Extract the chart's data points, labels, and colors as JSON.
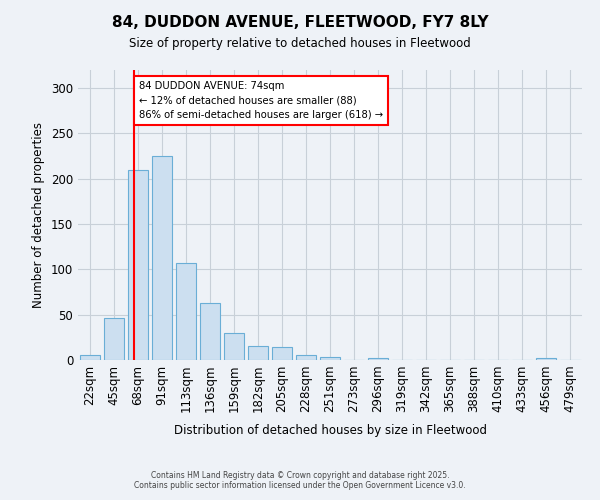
{
  "title_line1": "84, DUDDON AVENUE, FLEETWOOD, FY7 8LY",
  "title_line2": "Size of property relative to detached houses in Fleetwood",
  "xlabel": "Distribution of detached houses by size in Fleetwood",
  "ylabel": "Number of detached properties",
  "bin_labels": [
    "22sqm",
    "45sqm",
    "68sqm",
    "91sqm",
    "113sqm",
    "136sqm",
    "159sqm",
    "182sqm",
    "205sqm",
    "228sqm",
    "251sqm",
    "273sqm",
    "296sqm",
    "319sqm",
    "342sqm",
    "365sqm",
    "388sqm",
    "410sqm",
    "433sqm",
    "456sqm",
    "479sqm"
  ],
  "bar_heights": [
    5,
    46,
    210,
    225,
    107,
    63,
    30,
    15,
    14,
    6,
    3,
    0,
    2,
    0,
    0,
    0,
    0,
    0,
    0,
    2,
    0
  ],
  "bar_color": "#ccdff0",
  "bar_edge_color": "#6aaed6",
  "red_line_x": 1.82,
  "ylim_max": 320,
  "yticks": [
    0,
    50,
    100,
    150,
    200,
    250,
    300
  ],
  "annotation_text": "84 DUDDON AVENUE: 74sqm\n← 12% of detached houses are smaller (88)\n86% of semi-detached houses are larger (618) →",
  "bg_color": "#eef2f7",
  "grid_color": "#c8d0d8",
  "footer": "Contains HM Land Registry data © Crown copyright and database right 2025.\nContains public sector information licensed under the Open Government Licence v3.0."
}
